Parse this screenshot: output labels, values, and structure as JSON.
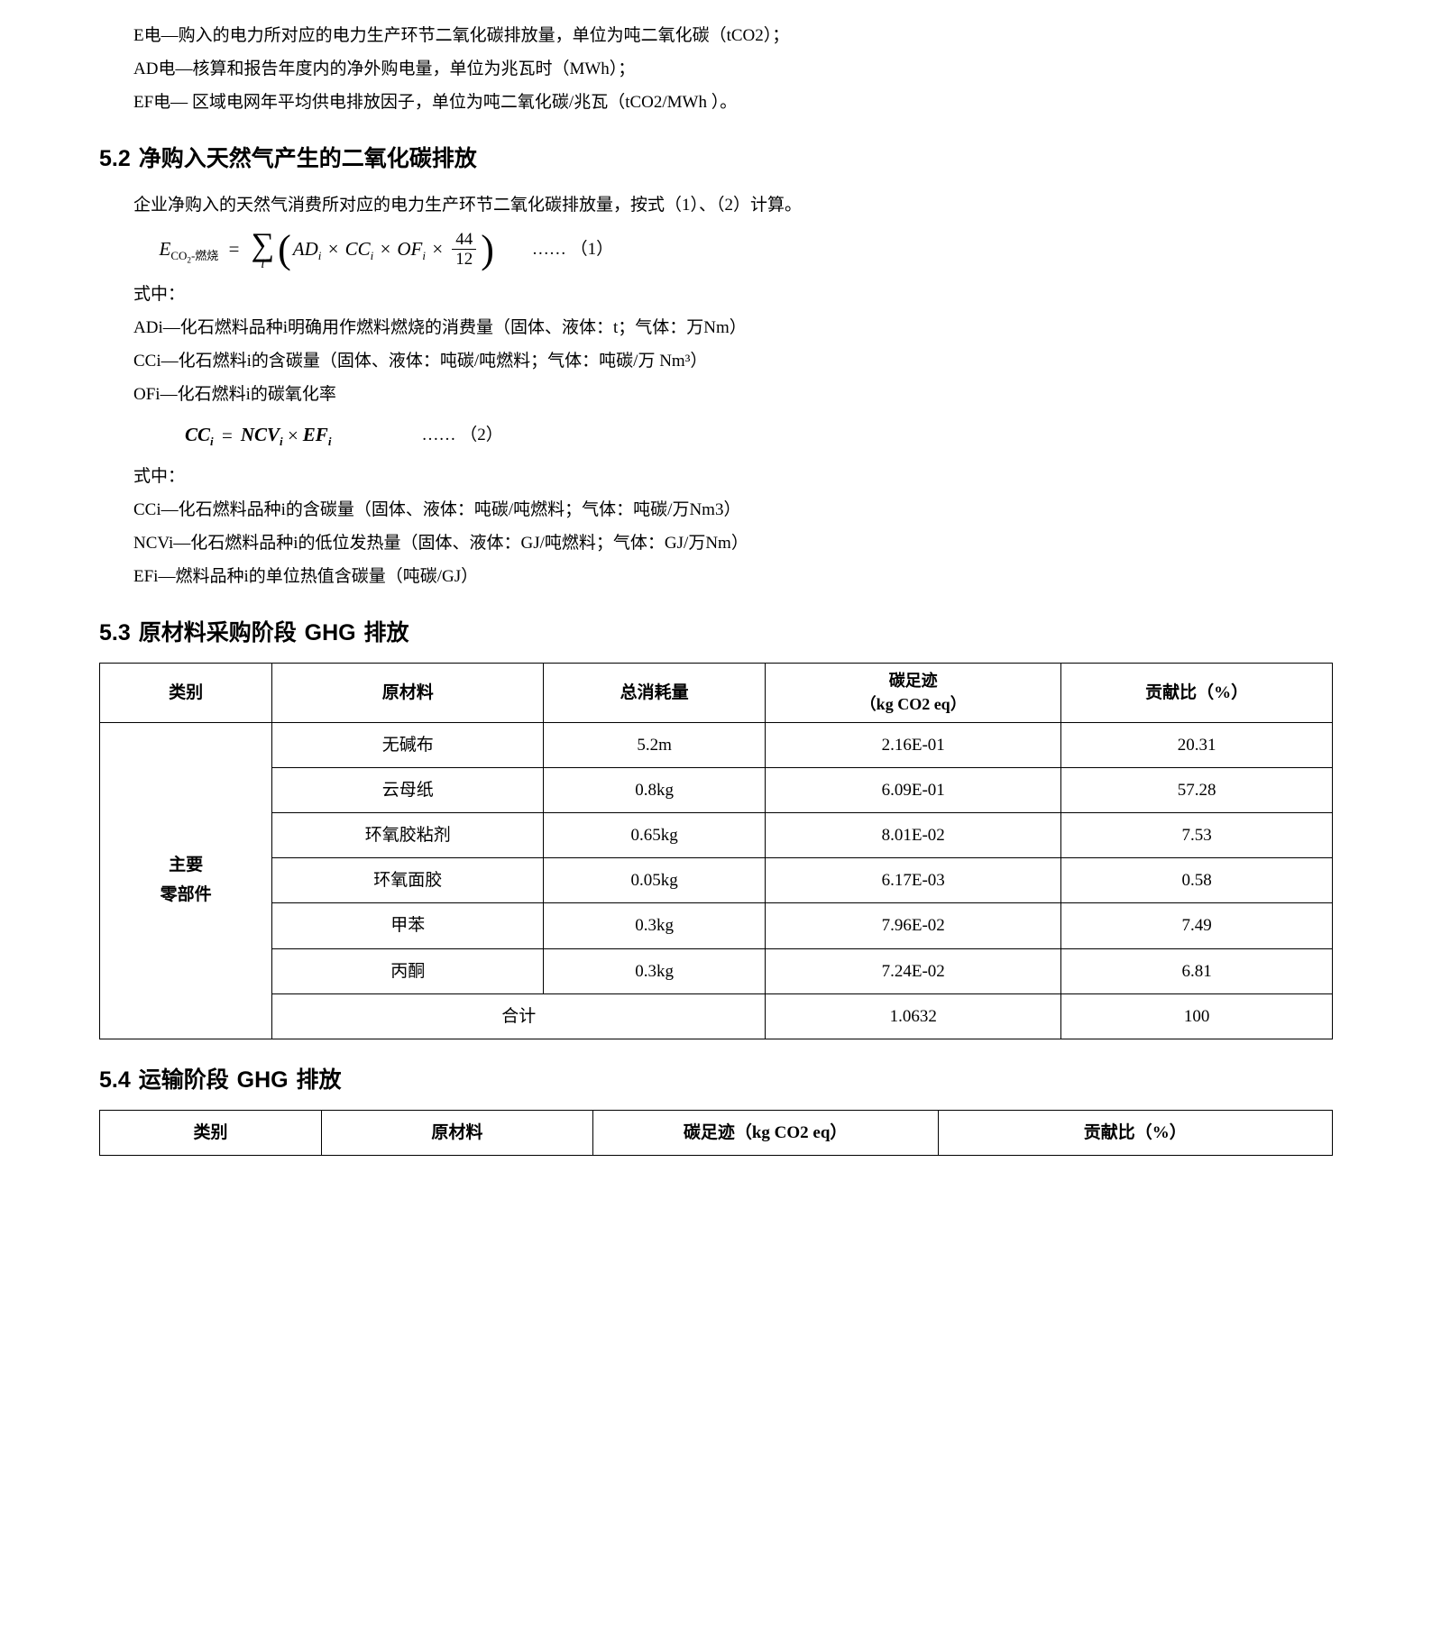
{
  "intro": {
    "l1": "E电—购入的电力所对应的电力生产环节二氧化碳排放量，单位为吨二氧化碳（tCO2）；",
    "l2": "AD电—核算和报告年度内的净外购电量，单位为兆瓦时（MWh）；",
    "l3": "EF电— 区域电网年平均供电排放因子，单位为吨二氧化碳/兆瓦（tCO2/MWh ）。"
  },
  "s52": {
    "title": "5.2 净购入天然气产生的二氧化碳排放",
    "p1": "企业净购入的天然气消费所对应的电力生产环节二氧化碳排放量，按式（1）、（2）计算。",
    "eq1_label": "…… （1）",
    "shizhong": "式中：",
    "adi": "ADi—化石燃料品种i明确用作燃料燃烧的消费量（固体、液体：t；气体：万Nm）",
    "cci": "CCi—化石燃料i的含碳量（固体、液体：吨碳/吨燃料；气体：吨碳/万 Nm³）",
    "ofi": "OFi—化石燃料i的碳氧化率",
    "eq2_label": "…… （2）",
    "cci2": "CCi—化石燃料品种i的含碳量（固体、液体：吨碳/吨燃料；气体：吨碳/万Nm3）",
    "ncvi": "NCVi—化石燃料品种i的低位发热量（固体、液体：GJ/吨燃料；气体：GJ/万Nm）",
    "efi": "EFi—燃料品种i的单位热值含碳量（吨碳/GJ）"
  },
  "s53": {
    "title": "5.3 原材料采购阶段 GHG 排放",
    "headers": {
      "cat": "类别",
      "mat": "原材料",
      "con": "总消耗量",
      "cf_l1": "碳足迹",
      "cf_l2": "（kg CO2 eq）",
      "pct": "贡献比（%）"
    },
    "category": "主要\n零部件",
    "rows": [
      {
        "mat": "无碱布",
        "con": "5.2m",
        "cf": "2.16E-01",
        "pct": "20.31"
      },
      {
        "mat": "云母纸",
        "con": "0.8kg",
        "cf": "6.09E-01",
        "pct": "57.28"
      },
      {
        "mat": "环氧胶粘剂",
        "con": "0.65kg",
        "cf": "8.01E-02",
        "pct": "7.53"
      },
      {
        "mat": "环氧面胶",
        "con": "0.05kg",
        "cf": "6.17E-03",
        "pct": "0.58"
      },
      {
        "mat": "甲苯",
        "con": "0.3kg",
        "cf": "7.96E-02",
        "pct": "7.49"
      },
      {
        "mat": "丙酮",
        "con": "0.3kg",
        "cf": "7.24E-02",
        "pct": "6.81"
      }
    ],
    "total": {
      "label": "合计",
      "cf": "1.0632",
      "pct": "100"
    }
  },
  "s54": {
    "title": "5.4 运输阶段 GHG 排放",
    "headers": {
      "cat": "类别",
      "mat": "原材料",
      "cf": "碳足迹（kg CO2 eq）",
      "pct": "贡献比（%）"
    }
  },
  "style": {
    "text_color": "#000000",
    "bg": "#ffffff",
    "border": "#000000"
  }
}
